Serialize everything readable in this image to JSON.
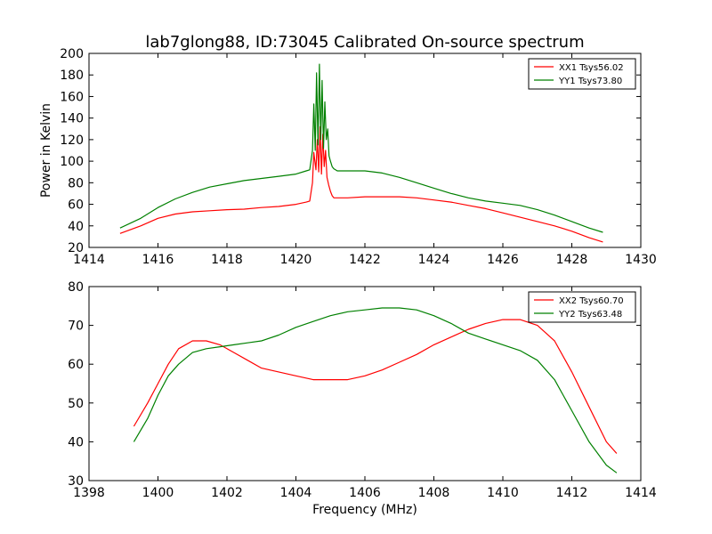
{
  "figure": {
    "title": "lab7glong88, ID:73045 Calibrated On-source spectrum"
  },
  "chart_data": [
    {
      "type": "line",
      "title": "lab7glong88, ID:73045 Calibrated On-source spectrum",
      "xlabel": "",
      "ylabel": "Power in Kelvin",
      "xlim": [
        1414,
        1430
      ],
      "ylim": [
        20,
        200
      ],
      "xticks": [
        1414,
        1416,
        1418,
        1420,
        1422,
        1424,
        1426,
        1428,
        1430
      ],
      "yticks": [
        20,
        40,
        60,
        80,
        100,
        120,
        140,
        160,
        180,
        200
      ],
      "legend": "top-right",
      "grid": false,
      "series": [
        {
          "name": "XX1 Tsys56.02",
          "color": "#ff0000",
          "x": [
            1414.9,
            1415.5,
            1416.0,
            1416.5,
            1417.0,
            1417.5,
            1418.0,
            1418.5,
            1419.0,
            1419.5,
            1420.0,
            1420.3,
            1420.4,
            1420.48,
            1420.52,
            1420.58,
            1420.62,
            1420.66,
            1420.7,
            1420.74,
            1420.78,
            1420.82,
            1420.86,
            1420.9,
            1420.95,
            1421.0,
            1421.05,
            1421.1,
            1421.2,
            1421.5,
            1422.0,
            1422.5,
            1423.0,
            1423.5,
            1424.0,
            1424.5,
            1425.0,
            1425.5,
            1426.0,
            1426.5,
            1427.0,
            1427.5,
            1428.0,
            1428.5,
            1428.9
          ],
          "y": [
            33,
            40,
            47,
            51,
            53,
            54,
            55,
            55.5,
            57,
            58,
            60,
            62,
            63,
            80,
            108,
            92,
            120,
            90,
            132,
            88,
            125,
            95,
            110,
            85,
            78,
            72,
            68,
            66,
            66,
            66,
            67,
            67,
            67,
            66,
            64,
            62,
            59,
            56,
            52,
            48,
            44,
            40,
            35,
            29,
            25
          ]
        },
        {
          "name": "YY1 Tsys73.80",
          "color": "#008000",
          "x": [
            1414.9,
            1415.5,
            1416.0,
            1416.5,
            1417.0,
            1417.5,
            1418.0,
            1418.5,
            1419.0,
            1419.5,
            1420.0,
            1420.3,
            1420.4,
            1420.48,
            1420.52,
            1420.56,
            1420.6,
            1420.64,
            1420.68,
            1420.72,
            1420.76,
            1420.8,
            1420.84,
            1420.88,
            1420.92,
            1420.96,
            1421.0,
            1421.05,
            1421.1,
            1421.2,
            1421.5,
            1422.0,
            1422.5,
            1423.0,
            1423.5,
            1424.0,
            1424.5,
            1425.0,
            1425.5,
            1426.0,
            1426.5,
            1427.0,
            1427.5,
            1428.0,
            1428.5,
            1428.9
          ],
          "y": [
            38,
            47,
            57,
            65,
            71,
            76,
            79,
            82,
            84,
            86,
            88,
            91,
            92,
            110,
            153,
            110,
            182,
            115,
            190,
            120,
            175,
            112,
            155,
            120,
            130,
            105,
            100,
            95,
            93,
            91,
            91,
            91,
            89,
            85,
            80,
            75,
            70,
            66,
            63,
            61,
            59,
            55,
            50,
            44,
            38,
            34
          ]
        }
      ]
    },
    {
      "type": "line",
      "title": "",
      "xlabel": "Frequency (MHz)",
      "ylabel": "",
      "xlim": [
        1398,
        1414
      ],
      "ylim": [
        30,
        80
      ],
      "xticks": [
        1398,
        1400,
        1402,
        1404,
        1406,
        1408,
        1410,
        1412,
        1414
      ],
      "yticks": [
        30,
        40,
        50,
        60,
        70,
        80
      ],
      "legend": "top-right",
      "grid": false,
      "series": [
        {
          "name": "XX2 Tsys60.70",
          "color": "#ff0000",
          "x": [
            1399.3,
            1399.7,
            1400.0,
            1400.3,
            1400.6,
            1401.0,
            1401.4,
            1401.8,
            1402.2,
            1402.6,
            1403.0,
            1403.5,
            1404.0,
            1404.5,
            1405.0,
            1405.5,
            1406.0,
            1406.5,
            1407.0,
            1407.5,
            1408.0,
            1408.5,
            1409.0,
            1409.5,
            1410.0,
            1410.5,
            1411.0,
            1411.5,
            1412.0,
            1412.5,
            1413.0,
            1413.3
          ],
          "y": [
            44,
            50,
            55,
            60,
            64,
            66,
            66,
            65,
            63,
            61,
            59,
            58,
            57,
            56,
            56,
            56,
            57,
            58.5,
            60.5,
            62.5,
            65,
            67,
            69,
            70.5,
            71.5,
            71.5,
            70,
            66,
            58,
            49,
            40,
            37
          ]
        },
        {
          "name": "YY2 Tsys63.48",
          "color": "#008000",
          "x": [
            1399.3,
            1399.7,
            1400.0,
            1400.3,
            1400.6,
            1401.0,
            1401.4,
            1401.8,
            1402.2,
            1402.6,
            1403.0,
            1403.5,
            1404.0,
            1404.5,
            1405.0,
            1405.5,
            1406.0,
            1406.5,
            1407.0,
            1407.5,
            1408.0,
            1408.5,
            1409.0,
            1409.5,
            1410.0,
            1410.5,
            1411.0,
            1411.5,
            1412.0,
            1412.5,
            1413.0,
            1413.3
          ],
          "y": [
            40,
            46,
            52,
            57,
            60,
            63,
            64,
            64.5,
            65,
            65.5,
            66,
            67.5,
            69.5,
            71,
            72.5,
            73.5,
            74,
            74.5,
            74.5,
            74,
            72.5,
            70.5,
            68,
            66.5,
            65,
            63.5,
            61,
            56,
            48,
            40,
            34,
            32
          ]
        }
      ]
    }
  ]
}
